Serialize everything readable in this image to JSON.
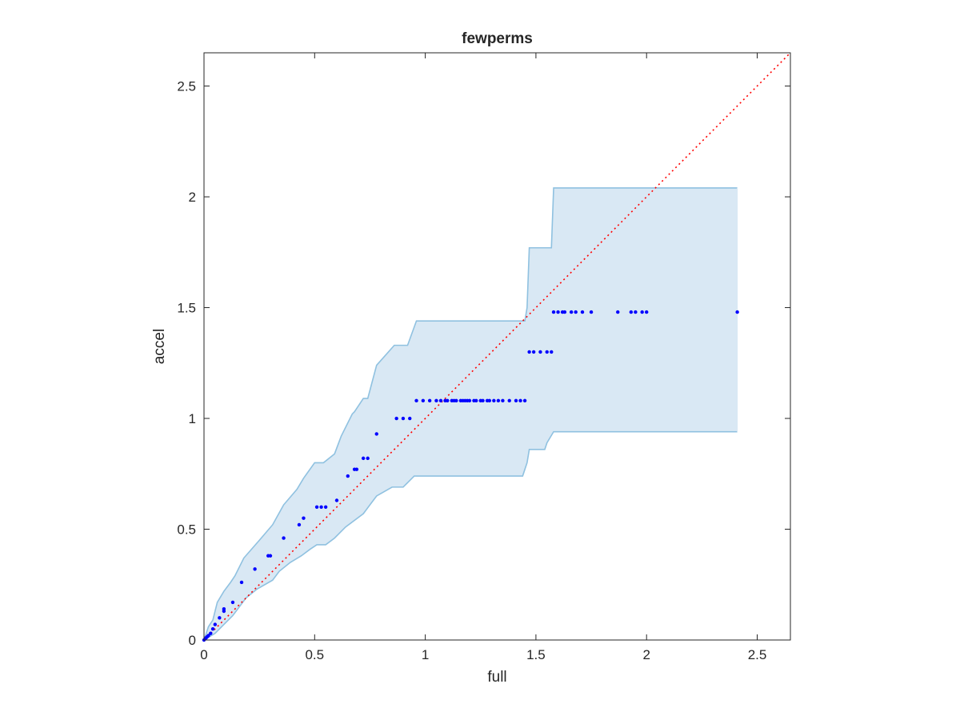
{
  "chart_data": {
    "type": "scatter",
    "title": "fewperms",
    "xlabel": "full",
    "ylabel": "accel",
    "xlim": [
      0,
      2.65
    ],
    "ylim": [
      0,
      2.65
    ],
    "xticks": [
      "0",
      "0.5",
      "1",
      "1.5",
      "2",
      "2.5"
    ],
    "yticks": [
      "0",
      "0.5",
      "1",
      "1.5",
      "2",
      "2.5"
    ],
    "xtick_values": [
      0,
      0.5,
      1,
      1.5,
      2,
      2.5
    ],
    "ytick_values": [
      0,
      0.5,
      1,
      1.5,
      2,
      2.5
    ],
    "grid": false,
    "box": true,
    "reference_line": {
      "style": "dotted",
      "color": "#ff0000",
      "from": [
        0,
        0
      ],
      "to": [
        2.65,
        2.65
      ]
    },
    "band": {
      "fill": "#d9e8f4",
      "stroke": "#8fc1e0",
      "upper": [
        [
          0,
          0
        ],
        [
          0.01,
          0.03
        ],
        [
          0.02,
          0.06
        ],
        [
          0.04,
          0.09
        ],
        [
          0.06,
          0.17
        ],
        [
          0.09,
          0.22
        ],
        [
          0.12,
          0.26
        ],
        [
          0.14,
          0.29
        ],
        [
          0.18,
          0.37
        ],
        [
          0.25,
          0.45
        ],
        [
          0.31,
          0.52
        ],
        [
          0.36,
          0.61
        ],
        [
          0.42,
          0.68
        ],
        [
          0.45,
          0.73
        ],
        [
          0.5,
          0.8
        ],
        [
          0.54,
          0.8
        ],
        [
          0.59,
          0.84
        ],
        [
          0.62,
          0.92
        ],
        [
          0.67,
          1.02
        ],
        [
          0.68,
          1.03
        ],
        [
          0.72,
          1.09
        ],
        [
          0.74,
          1.09
        ],
        [
          0.78,
          1.24
        ],
        [
          0.86,
          1.33
        ],
        [
          0.92,
          1.33
        ],
        [
          0.96,
          1.44
        ],
        [
          1.45,
          1.44
        ],
        [
          1.46,
          1.5
        ],
        [
          1.47,
          1.77
        ],
        [
          1.57,
          1.77
        ],
        [
          1.58,
          2.04
        ],
        [
          2.41,
          2.04
        ]
      ],
      "lower": [
        [
          0,
          0
        ],
        [
          0.05,
          0.03
        ],
        [
          0.09,
          0.07
        ],
        [
          0.13,
          0.11
        ],
        [
          0.16,
          0.15
        ],
        [
          0.19,
          0.19
        ],
        [
          0.24,
          0.23
        ],
        [
          0.31,
          0.27
        ],
        [
          0.34,
          0.31
        ],
        [
          0.39,
          0.35
        ],
        [
          0.44,
          0.38
        ],
        [
          0.48,
          0.41
        ],
        [
          0.51,
          0.43
        ],
        [
          0.55,
          0.43
        ],
        [
          0.59,
          0.46
        ],
        [
          0.64,
          0.51
        ],
        [
          0.72,
          0.57
        ],
        [
          0.75,
          0.61
        ],
        [
          0.78,
          0.65
        ],
        [
          0.85,
          0.69
        ],
        [
          0.9,
          0.69
        ],
        [
          0.95,
          0.74
        ],
        [
          1.44,
          0.74
        ],
        [
          1.46,
          0.8
        ],
        [
          1.47,
          0.86
        ],
        [
          1.54,
          0.86
        ],
        [
          1.55,
          0.89
        ],
        [
          1.58,
          0.94
        ],
        [
          2.41,
          0.94
        ]
      ]
    },
    "series": [
      {
        "color": "#0000ff",
        "marker": "dot",
        "points": [
          [
            0,
            0
          ],
          [
            0.005,
            0.005
          ],
          [
            0.01,
            0.01
          ],
          [
            0.015,
            0.015
          ],
          [
            0.02,
            0.02
          ],
          [
            0.03,
            0.03
          ],
          [
            0.04,
            0.05
          ],
          [
            0.05,
            0.07
          ],
          [
            0.07,
            0.1
          ],
          [
            0.09,
            0.13
          ],
          [
            0.09,
            0.14
          ],
          [
            0.13,
            0.17
          ],
          [
            0.17,
            0.26
          ],
          [
            0.23,
            0.32
          ],
          [
            0.29,
            0.38
          ],
          [
            0.3,
            0.38
          ],
          [
            0.36,
            0.46
          ],
          [
            0.43,
            0.52
          ],
          [
            0.45,
            0.55
          ],
          [
            0.51,
            0.6
          ],
          [
            0.53,
            0.6
          ],
          [
            0.55,
            0.6
          ],
          [
            0.6,
            0.63
          ],
          [
            0.65,
            0.74
          ],
          [
            0.68,
            0.77
          ],
          [
            0.69,
            0.77
          ],
          [
            0.72,
            0.82
          ],
          [
            0.74,
            0.82
          ],
          [
            0.78,
            0.93
          ],
          [
            0.87,
            1.0
          ],
          [
            0.9,
            1.0
          ],
          [
            0.93,
            1.0
          ],
          [
            0.96,
            1.08
          ],
          [
            0.99,
            1.08
          ],
          [
            1.02,
            1.08
          ],
          [
            1.05,
            1.08
          ],
          [
            1.07,
            1.08
          ],
          [
            1.09,
            1.08
          ],
          [
            1.1,
            1.08
          ],
          [
            1.12,
            1.08
          ],
          [
            1.13,
            1.08
          ],
          [
            1.14,
            1.08
          ],
          [
            1.16,
            1.08
          ],
          [
            1.17,
            1.08
          ],
          [
            1.18,
            1.08
          ],
          [
            1.19,
            1.08
          ],
          [
            1.2,
            1.08
          ],
          [
            1.22,
            1.08
          ],
          [
            1.23,
            1.08
          ],
          [
            1.25,
            1.08
          ],
          [
            1.26,
            1.08
          ],
          [
            1.28,
            1.08
          ],
          [
            1.29,
            1.08
          ],
          [
            1.31,
            1.08
          ],
          [
            1.33,
            1.08
          ],
          [
            1.35,
            1.08
          ],
          [
            1.38,
            1.08
          ],
          [
            1.41,
            1.08
          ],
          [
            1.43,
            1.08
          ],
          [
            1.45,
            1.08
          ],
          [
            1.47,
            1.3
          ],
          [
            1.49,
            1.3
          ],
          [
            1.52,
            1.3
          ],
          [
            1.55,
            1.3
          ],
          [
            1.57,
            1.3
          ],
          [
            1.58,
            1.48
          ],
          [
            1.6,
            1.48
          ],
          [
            1.62,
            1.48
          ],
          [
            1.63,
            1.48
          ],
          [
            1.66,
            1.48
          ],
          [
            1.68,
            1.48
          ],
          [
            1.71,
            1.48
          ],
          [
            1.75,
            1.48
          ],
          [
            1.87,
            1.48
          ],
          [
            1.93,
            1.48
          ],
          [
            1.95,
            1.48
          ],
          [
            1.98,
            1.48
          ],
          [
            2.0,
            1.48
          ],
          [
            2.41,
            1.48
          ]
        ]
      }
    ]
  }
}
